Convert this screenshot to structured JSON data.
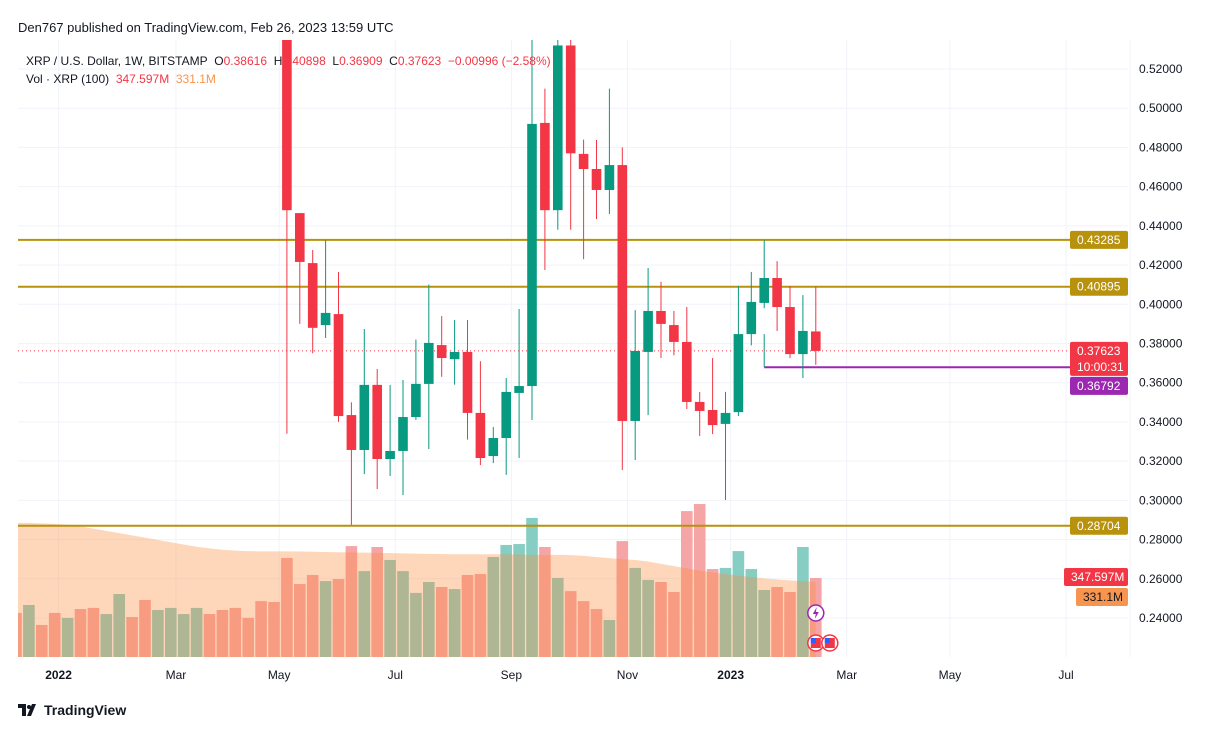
{
  "header": {
    "published": "Den767 published on TradingView.com, Feb 26, 2023 13:59 UTC"
  },
  "legend": {
    "symbol": "XRP / U.S. Dollar, 1W, BITSTAMP",
    "o_label": "O",
    "o": "0.38616",
    "h_label": "H",
    "h": "0.40898",
    "l_label": "L",
    "l": "0.36909",
    "c_label": "C",
    "c": "0.37623",
    "change": "−0.00996 (−2.58%)",
    "vol_label": "Vol · XRP (100)",
    "vol": "347.597M",
    "vol_ma": "331.1M"
  },
  "footer": {
    "logo": "TradingView"
  },
  "chart_data": {
    "type": "candlestick",
    "ylim": [
      0.23,
      0.535
    ],
    "y_ticks": [
      "0.24000",
      "0.26000",
      "0.28000",
      "0.30000",
      "0.32000",
      "0.34000",
      "0.36000",
      "0.38000",
      "0.40000",
      "0.42000",
      "0.44000",
      "0.46000",
      "0.48000",
      "0.50000",
      "0.52000"
    ],
    "x_ticks": [
      {
        "label": "2022",
        "bold": true,
        "bar": 3.3
      },
      {
        "label": "Mar",
        "bar": 12.4
      },
      {
        "label": "May",
        "bar": 20.4
      },
      {
        "label": "Jul",
        "bar": 29.4
      },
      {
        "label": "Sep",
        "bar": 38.4
      },
      {
        "label": "Nov",
        "bar": 47.4
      },
      {
        "label": "2023",
        "bold": true,
        "bar": 55.4
      },
      {
        "label": "Mar",
        "bar": 64.4
      },
      {
        "label": "May",
        "bar": 72.4
      },
      {
        "label": "Jul",
        "bar": 81.4
      }
    ],
    "candles_first_bar": 21,
    "candles": [
      [
        0.535,
        0.55,
        0.334,
        0.448
      ],
      [
        0.4465,
        0.4465,
        0.39,
        0.4216
      ],
      [
        0.421,
        0.4277,
        0.375,
        0.388
      ],
      [
        0.3894,
        0.4328,
        0.3828,
        0.3956
      ],
      [
        0.395,
        0.4165,
        0.34,
        0.343
      ],
      [
        0.3435,
        0.35,
        0.2875,
        0.3257
      ],
      [
        0.3257,
        0.3874,
        0.3134,
        0.3589
      ],
      [
        0.3589,
        0.367,
        0.3058,
        0.3211
      ],
      [
        0.3211,
        0.3589,
        0.3124,
        0.3252
      ],
      [
        0.3252,
        0.3614,
        0.3027,
        0.3425
      ],
      [
        0.3425,
        0.382,
        0.341,
        0.3594
      ],
      [
        0.3594,
        0.41,
        0.3262,
        0.3803
      ],
      [
        0.3792,
        0.394,
        0.363,
        0.3726
      ],
      [
        0.372,
        0.392,
        0.359,
        0.3757
      ],
      [
        0.3757,
        0.392,
        0.331,
        0.3446
      ],
      [
        0.3446,
        0.371,
        0.318,
        0.3216
      ],
      [
        0.3226,
        0.3374,
        0.319,
        0.3318
      ],
      [
        0.3318,
        0.3624,
        0.313,
        0.3553
      ],
      [
        0.3548,
        0.3976,
        0.3216,
        0.3583
      ],
      [
        0.3583,
        0.535,
        0.341,
        0.492
      ],
      [
        0.4925,
        0.51,
        0.4175,
        0.448
      ],
      [
        0.448,
        0.535,
        0.438,
        0.532
      ],
      [
        0.532,
        0.535,
        0.438,
        0.477
      ],
      [
        0.4767,
        0.484,
        0.423,
        0.469
      ],
      [
        0.469,
        0.4838,
        0.4435,
        0.4583
      ],
      [
        0.4583,
        0.51,
        0.446,
        0.471
      ],
      [
        0.471,
        0.48,
        0.3155,
        0.3405
      ],
      [
        0.3405,
        0.397,
        0.3206,
        0.3762
      ],
      [
        0.3757,
        0.4185,
        0.3435,
        0.3966
      ],
      [
        0.3966,
        0.4114,
        0.3726,
        0.39
      ],
      [
        0.3894,
        0.3966,
        0.374,
        0.3808
      ],
      [
        0.3808,
        0.3986,
        0.3466,
        0.3502
      ],
      [
        0.3502,
        0.3553,
        0.3328,
        0.3456
      ],
      [
        0.3461,
        0.3726,
        0.3338,
        0.3384
      ],
      [
        0.339,
        0.3553,
        0.3002,
        0.3446
      ],
      [
        0.345,
        0.4093,
        0.343,
        0.3848
      ],
      [
        0.3848,
        0.4165,
        0.379,
        0.4012
      ],
      [
        0.4007,
        0.4328,
        0.398,
        0.4134
      ],
      [
        0.4134,
        0.422,
        0.3864,
        0.3986
      ],
      [
        0.3986,
        0.4093,
        0.3726,
        0.3746
      ],
      [
        0.3746,
        0.4047,
        0.3624,
        0.3864
      ],
      [
        0.38616,
        0.40898,
        0.36909,
        0.37623
      ]
    ],
    "volume_max": 700,
    "volume": [
      194,
      229,
      141,
      194,
      172,
      211,
      216,
      189,
      277,
      176,
      251,
      207,
      216,
      189,
      216,
      189,
      207,
      216,
      172,
      246,
      242,
      436,
      321,
      361,
      334,
      343,
      488,
      378,
      484,
      427,
      378,
      282,
      330,
      308,
      299,
      361,
      365,
      440,
      493,
      497,
      612,
      484,
      348,
      290,
      246,
      211,
      163,
      510,
      392,
      339,
      330,
      286,
      642,
      673,
      387,
      392,
      466,
      387,
      295,
      308,
      286,
      484,
      347.6
    ],
    "volume_up": [
      0,
      1,
      0,
      0,
      1,
      0,
      0,
      1,
      1,
      0,
      0,
      1,
      1,
      1,
      1,
      0,
      0,
      0,
      0,
      0,
      0,
      0,
      0,
      0,
      1,
      0,
      0,
      1,
      0,
      1,
      1,
      1,
      1,
      0,
      1,
      0,
      0,
      1,
      1,
      1,
      1,
      0,
      1,
      0,
      0,
      0,
      1,
      0,
      1,
      1,
      0,
      0,
      0,
      0,
      0,
      1,
      1,
      1,
      1,
      0,
      0,
      1,
      0
    ],
    "volume_ma": [
      590,
      590,
      588,
      585,
      582,
      575,
      565,
      555,
      545,
      535,
      525,
      515,
      505,
      495,
      485,
      478,
      472,
      468,
      466,
      465,
      465,
      465,
      464,
      463,
      462,
      461,
      460,
      459,
      458,
      457,
      456,
      455,
      454,
      453,
      452,
      452,
      452,
      452,
      452,
      451,
      450,
      448,
      450,
      448,
      445,
      440,
      435,
      430,
      427,
      420,
      410,
      400,
      390,
      380,
      372,
      365,
      358,
      352,
      346,
      341,
      337,
      334,
      331
    ],
    "hlines": [
      {
        "value": 0.43285,
        "label": "0.43285",
        "color": "#b8920c"
      },
      {
        "value": 0.40895,
        "label": "0.40895",
        "color": "#b8920c"
      },
      {
        "value": 0.28704,
        "label": "0.28704",
        "color": "#b8920c"
      }
    ],
    "ray": {
      "value": 0.36792,
      "label": "0.36792",
      "color": "#9c27b0",
      "from_bar": 58
    },
    "last_price": {
      "value": 0.37623,
      "label": "0.37623",
      "countdown": "10:00:31",
      "color": "#f23645"
    },
    "volume_labels": {
      "vol": "347.597M",
      "ma": "331.1M"
    },
    "colors": {
      "up": "#089981",
      "down": "#f23645",
      "vol_up": "#86cdc3",
      "vol_down": "#f5a5a6",
      "vol_ma_area": "#fb8c3c"
    }
  }
}
